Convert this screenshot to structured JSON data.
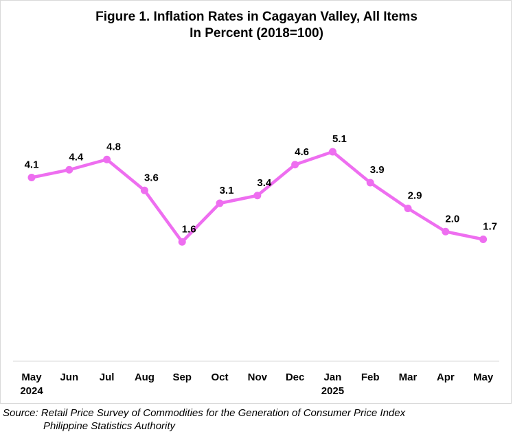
{
  "chart_data": {
    "type": "line",
    "title": "Figure 1. Inflation Rates in Cagayan Valley, All Items",
    "subtitle": "In Percent (2018=100)",
    "xlabel": "",
    "ylabel": "",
    "categories": [
      "May",
      "Jun",
      "Jul",
      "Aug",
      "Sep",
      "Oct",
      "Nov",
      "Dec",
      "Jan",
      "Feb",
      "Mar",
      "Apr",
      "May"
    ],
    "year_labels": [
      "2024",
      "",
      "",
      "",
      "",
      "",
      "",
      "",
      "2025",
      "",
      "",
      "",
      ""
    ],
    "series": [
      {
        "values": [
          4.1,
          4.4,
          4.8,
          3.6,
          1.6,
          3.1,
          3.4,
          4.6,
          5.1,
          3.9,
          2.9,
          2.0,
          1.7
        ],
        "labels": [
          "4.1",
          "4.4",
          "4.8",
          "3.6",
          "1.6",
          "3.1",
          "3.4",
          "4.6",
          "5.1",
          "3.9",
          "2.9",
          "2.0",
          "1.7"
        ],
        "color": "#ee6ef0"
      }
    ],
    "ylim": [
      -6.0,
      6.0
    ],
    "grid": false,
    "legend": "none"
  },
  "source": {
    "line1": "Source: Retail Price Survey of Commodities for the Generation of Consumer Price Index",
    "line2": "Philippine Statistics Authority"
  }
}
